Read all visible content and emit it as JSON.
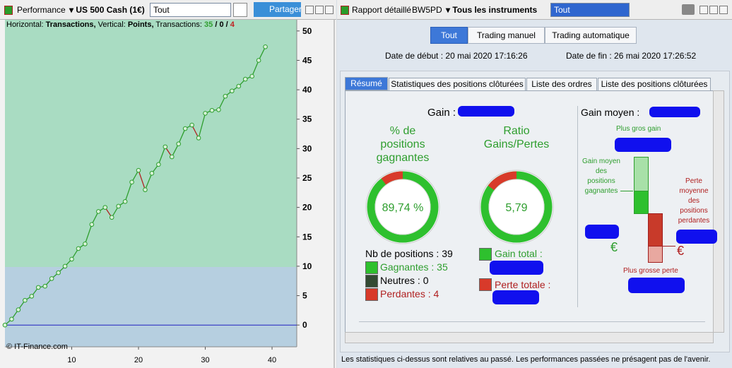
{
  "left_window": {
    "toolbar": {
      "tab": "Performance",
      "instrument": "US 500 Cash (1€)",
      "period": "Tout",
      "share": "Partager"
    },
    "chart_data": {
      "type": "line",
      "header": {
        "h_label": "Horizontal:",
        "h_value": "Transactions,",
        "v_label": "Vertical:",
        "v_value": "Points,",
        "t_label": "Transactions:",
        "separator": "/",
        "counts": [
          35,
          0,
          4
        ]
      },
      "copyright": "© IT-Finance.com",
      "x": [
        0,
        1,
        2,
        3,
        4,
        5,
        6,
        7,
        8,
        9,
        10,
        11,
        12,
        13,
        14,
        15,
        16,
        17,
        18,
        19,
        20,
        21,
        22,
        23,
        24,
        25,
        26,
        27,
        28,
        29,
        30,
        31,
        32,
        33,
        34,
        35,
        36,
        37,
        38,
        39
      ],
      "values": [
        0,
        1,
        2.6,
        4.2,
        4.9,
        6.4,
        6.6,
        7.9,
        8.9,
        10,
        11.2,
        13,
        13.8,
        17.1,
        19.3,
        20,
        18.3,
        20.2,
        21,
        24.3,
        26.3,
        23,
        25.8,
        27.3,
        30.3,
        28.6,
        30.8,
        33.4,
        34,
        31.8,
        36,
        36.5,
        36.6,
        38.9,
        39.8,
        40.6,
        41.8,
        42.3,
        45,
        47.3
      ],
      "color": "#2e9e2e",
      "down_color": "#b02020",
      "xlim": [
        0,
        43.7
      ],
      "ylim": [
        -3.7,
        51.9
      ],
      "xticks": [
        10,
        20,
        30,
        40
      ],
      "yticks": [
        0,
        5,
        10,
        15,
        20,
        25,
        30,
        35,
        40,
        45,
        50
      ]
    }
  },
  "right_window": {
    "toolbar": {
      "report": "Rapport détaillé",
      "account": "BW5PD",
      "instruments": "Tous les instruments",
      "period": "Tout"
    },
    "mode_buttons": [
      "Tout",
      "Trading manuel",
      "Trading automatique"
    ],
    "start_date": "Date de début : 20 mai 2020 17:16:26",
    "end_date": "Date de fin : 26 mai 2020 17:26:52",
    "tabs": [
      "Résumé",
      "Statistiques des positions clôturées",
      "Liste des ordres",
      "Liste des positions clôturées"
    ],
    "summary": {
      "gain_label": "Gain :",
      "win_rate": {
        "title": "% de positions gagnantes",
        "value": 89.74,
        "value_label": "89,74 %"
      },
      "ratio": {
        "title": "Ratio Gains/Pertes",
        "value": 5.79,
        "value_label": "5,79"
      },
      "positions": {
        "label": "Nb de positions :",
        "value": 39
      },
      "winners": {
        "label": "Gagnantes :",
        "value": 35
      },
      "neutral": {
        "label": "Neutres :",
        "value": 0
      },
      "losers": {
        "label": "Perdantes :",
        "value": 4
      },
      "total_gain_label": "Gain total :",
      "total_loss_label": "Perte totale :",
      "avg_gain_label": "Gain moyen :",
      "biggest_gain": "Plus gros gain",
      "avg_winning": "Gain moyen des positions gagnantes",
      "avg_losing": "Perte moyenne des positions perdantes",
      "biggest_loss": "Plus grosse perte",
      "currency": "€"
    },
    "footer": "Les statistiques ci-dessus sont relatives au passé. Les performances passées ne présagent pas de l'avenir."
  }
}
